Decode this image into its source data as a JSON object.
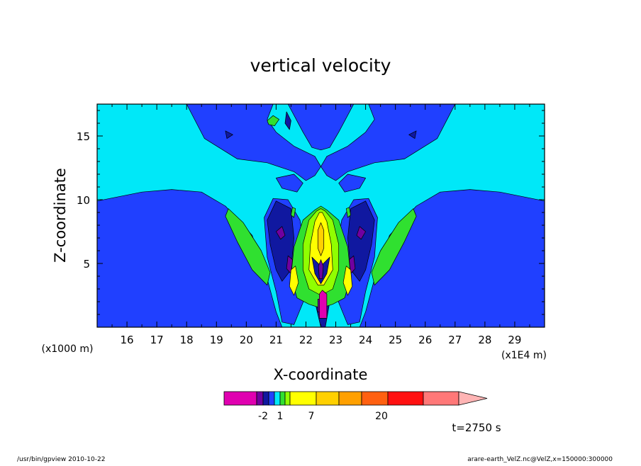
{
  "chart_data": {
    "type": "heatmap",
    "subtype": "filled-contour",
    "title": "vertical velocity",
    "xlabel": "X-coordinate",
    "ylabel": "Z-coordinate",
    "x_scale_label": "(x1E4 m)",
    "y_scale_label": "(x1000 m)",
    "x_range": [
      15.0,
      30.0
    ],
    "y_range": [
      0.0,
      17.5
    ],
    "x_ticks": [
      16,
      17,
      18,
      19,
      20,
      21,
      22,
      23,
      24,
      25,
      26,
      27,
      28,
      29
    ],
    "y_ticks": [
      5,
      10,
      15
    ],
    "colorbar": {
      "levels_shown": [
        "-2",
        "1",
        "7",
        "20"
      ],
      "colors": [
        "#e000b0",
        "#7000a0",
        "#1018a0",
        "#2040ff",
        "#00e8f8",
        "#30e030",
        "#90ff00",
        "#ffff00",
        "#ffd000",
        "#ffa000",
        "#ff6010",
        "#ff1010",
        "#ff7878",
        "#ffb4b4"
      ],
      "extend": "max"
    },
    "regions": [
      {
        "color": "#2040ff",
        "points": [
          [
            15.0,
            0.0
          ],
          [
            15.0,
            9.9
          ],
          [
            16.5,
            10.6
          ],
          [
            17.5,
            10.8
          ],
          [
            18.5,
            10.6
          ],
          [
            19.3,
            9.5
          ],
          [
            20.2,
            7.2
          ],
          [
            20.7,
            3.8
          ],
          [
            21.0,
            1.2
          ],
          [
            21.2,
            0.0
          ]
        ]
      },
      {
        "color": "#2040ff",
        "points": [
          [
            30.0,
            0.0
          ],
          [
            30.0,
            9.9
          ],
          [
            28.5,
            10.6
          ],
          [
            27.5,
            10.8
          ],
          [
            26.5,
            10.6
          ],
          [
            25.7,
            9.5
          ],
          [
            24.8,
            7.2
          ],
          [
            24.3,
            3.8
          ],
          [
            24.0,
            1.2
          ],
          [
            23.8,
            0.0
          ]
        ]
      },
      {
        "color": "#2040ff",
        "points": [
          [
            18.0,
            17.5
          ],
          [
            18.6,
            14.8
          ],
          [
            19.7,
            13.2
          ],
          [
            20.7,
            12.9
          ],
          [
            21.6,
            12.2
          ],
          [
            22.0,
            11.5
          ],
          [
            22.3,
            11.9
          ],
          [
            22.5,
            12.6
          ],
          [
            22.3,
            13.4
          ],
          [
            21.6,
            14.2
          ],
          [
            21.0,
            15.3
          ],
          [
            20.7,
            16.3
          ],
          [
            20.9,
            17.5
          ]
        ]
      },
      {
        "color": "#2040ff",
        "points": [
          [
            27.0,
            17.5
          ],
          [
            26.4,
            14.8
          ],
          [
            25.3,
            13.2
          ],
          [
            24.3,
            12.9
          ],
          [
            23.4,
            12.2
          ],
          [
            23.0,
            11.5
          ],
          [
            22.7,
            11.9
          ],
          [
            22.5,
            12.6
          ],
          [
            22.7,
            13.4
          ],
          [
            23.4,
            14.2
          ],
          [
            24.0,
            15.3
          ],
          [
            24.3,
            16.3
          ],
          [
            24.1,
            17.5
          ]
        ]
      },
      {
        "color": "#2040ff",
        "points": [
          [
            21.4,
            17.5
          ],
          [
            21.9,
            15.3
          ],
          [
            22.2,
            14.1
          ],
          [
            22.5,
            13.9
          ],
          [
            22.8,
            14.1
          ],
          [
            23.1,
            15.3
          ],
          [
            23.6,
            17.5
          ]
        ]
      },
      {
        "color": "#2040ff",
        "points": [
          [
            21.0,
            11.7
          ],
          [
            21.6,
            12.0
          ],
          [
            21.9,
            11.3
          ],
          [
            21.7,
            10.6
          ],
          [
            21.2,
            10.9
          ]
        ]
      },
      {
        "color": "#2040ff",
        "points": [
          [
            24.0,
            11.7
          ],
          [
            23.4,
            12.0
          ],
          [
            23.1,
            11.3
          ],
          [
            23.3,
            10.6
          ],
          [
            23.8,
            10.9
          ]
        ]
      },
      {
        "color": "#2040ff",
        "points": [
          [
            20.6,
            8.6
          ],
          [
            20.9,
            10.1
          ],
          [
            21.4,
            10.0
          ],
          [
            21.8,
            8.4
          ],
          [
            22.0,
            5.5
          ],
          [
            22.0,
            2.5
          ],
          [
            21.6,
            0.2
          ],
          [
            21.2,
            0.4
          ],
          [
            21.0,
            2.8
          ],
          [
            20.7,
            5.5
          ]
        ]
      },
      {
        "color": "#2040ff",
        "points": [
          [
            24.4,
            8.6
          ],
          [
            24.1,
            10.1
          ],
          [
            23.6,
            10.0
          ],
          [
            23.2,
            8.4
          ],
          [
            23.0,
            5.5
          ],
          [
            23.0,
            2.5
          ],
          [
            23.4,
            0.2
          ],
          [
            23.8,
            0.4
          ],
          [
            24.0,
            2.8
          ],
          [
            24.3,
            5.5
          ]
        ]
      },
      {
        "color": "#1018a0",
        "points": [
          [
            20.7,
            8.4
          ],
          [
            21.0,
            9.9
          ],
          [
            21.5,
            9.3
          ],
          [
            21.6,
            7.0
          ],
          [
            21.5,
            4.5
          ],
          [
            21.2,
            3.6
          ],
          [
            21.0,
            4.5
          ],
          [
            20.8,
            6.5
          ]
        ]
      },
      {
        "color": "#1018a0",
        "points": [
          [
            24.3,
            8.4
          ],
          [
            24.0,
            9.9
          ],
          [
            23.5,
            9.3
          ],
          [
            23.4,
            7.0
          ],
          [
            23.5,
            4.5
          ],
          [
            23.8,
            3.6
          ],
          [
            24.0,
            4.5
          ],
          [
            24.2,
            6.5
          ]
        ]
      },
      {
        "color": "#1018a0",
        "points": [
          [
            22.5,
            0.0
          ],
          [
            22.3,
            2.0
          ],
          [
            22.35,
            4.6
          ],
          [
            22.55,
            5.2
          ],
          [
            22.75,
            4.6
          ],
          [
            22.8,
            2.0
          ],
          [
            22.65,
            0.0
          ]
        ]
      },
      {
        "color": "#1018a0",
        "points": [
          [
            21.3,
            16.0
          ],
          [
            21.35,
            16.9
          ],
          [
            21.5,
            16.2
          ],
          [
            21.45,
            15.5
          ]
        ]
      },
      {
        "color": "#1018a0",
        "points": [
          [
            19.3,
            15.4
          ],
          [
            19.55,
            15.1
          ],
          [
            19.35,
            14.8
          ]
        ]
      },
      {
        "color": "#1018a0",
        "points": [
          [
            25.7,
            15.4
          ],
          [
            25.45,
            15.1
          ],
          [
            25.65,
            14.8
          ]
        ]
      },
      {
        "color": "#7000a0",
        "points": [
          [
            21.0,
            7.5
          ],
          [
            21.2,
            7.9
          ],
          [
            21.3,
            7.2
          ],
          [
            21.15,
            6.9
          ]
        ]
      },
      {
        "color": "#7000a0",
        "points": [
          [
            24.0,
            7.5
          ],
          [
            23.8,
            7.9
          ],
          [
            23.7,
            7.2
          ],
          [
            23.85,
            6.9
          ]
        ]
      },
      {
        "color": "#7000a0",
        "points": [
          [
            21.4,
            5.6
          ],
          [
            21.55,
            5.3
          ],
          [
            21.5,
            4.2
          ],
          [
            21.35,
            4.6
          ]
        ]
      },
      {
        "color": "#7000a0",
        "points": [
          [
            23.6,
            5.6
          ],
          [
            23.45,
            5.3
          ],
          [
            23.5,
            4.2
          ],
          [
            23.65,
            4.6
          ]
        ]
      },
      {
        "color": "#30e030",
        "points": [
          [
            19.4,
            9.3
          ],
          [
            19.9,
            8.2
          ],
          [
            20.5,
            6.0
          ],
          [
            20.8,
            4.3
          ],
          [
            20.7,
            3.3
          ],
          [
            20.2,
            4.5
          ],
          [
            19.7,
            6.7
          ],
          [
            19.3,
            8.7
          ]
        ]
      },
      {
        "color": "#30e030",
        "points": [
          [
            25.6,
            9.3
          ],
          [
            25.1,
            8.2
          ],
          [
            24.5,
            6.0
          ],
          [
            24.2,
            4.3
          ],
          [
            24.3,
            3.3
          ],
          [
            24.8,
            4.5
          ],
          [
            25.3,
            6.7
          ],
          [
            25.7,
            8.7
          ]
        ]
      },
      {
        "color": "#30e030",
        "points": [
          [
            21.9,
            8.4
          ],
          [
            22.3,
            9.2
          ],
          [
            22.5,
            9.5
          ],
          [
            22.7,
            9.2
          ],
          [
            23.1,
            8.4
          ],
          [
            23.4,
            6.3
          ],
          [
            23.5,
            4.0
          ],
          [
            23.3,
            2.3
          ],
          [
            22.9,
            1.8
          ],
          [
            22.5,
            1.5
          ],
          [
            22.1,
            1.8
          ],
          [
            21.7,
            2.3
          ],
          [
            21.5,
            4.0
          ],
          [
            21.6,
            6.3
          ]
        ]
      },
      {
        "color": "#30e030",
        "points": [
          [
            20.7,
            16.2
          ],
          [
            20.9,
            16.6
          ],
          [
            21.1,
            16.3
          ],
          [
            20.95,
            15.8
          ],
          [
            20.75,
            15.9
          ]
        ]
      },
      {
        "color": "#30e030",
        "points": [
          [
            21.55,
            9.4
          ],
          [
            21.65,
            9.3
          ],
          [
            21.6,
            8.6
          ],
          [
            21.5,
            8.8
          ]
        ]
      },
      {
        "color": "#30e030",
        "points": [
          [
            23.45,
            9.4
          ],
          [
            23.35,
            9.3
          ],
          [
            23.4,
            8.6
          ],
          [
            23.5,
            8.8
          ]
        ]
      },
      {
        "color": "#90ff00",
        "points": [
          [
            22.1,
            8.4
          ],
          [
            22.35,
            9.1
          ],
          [
            22.5,
            9.3
          ],
          [
            22.65,
            9.1
          ],
          [
            22.9,
            8.4
          ],
          [
            23.1,
            6.5
          ],
          [
            23.1,
            4.5
          ],
          [
            22.9,
            3.0
          ],
          [
            22.5,
            2.5
          ],
          [
            22.1,
            3.0
          ],
          [
            21.9,
            4.5
          ],
          [
            21.9,
            6.5
          ]
        ]
      },
      {
        "color": "#ffff00",
        "points": [
          [
            22.3,
            8.3
          ],
          [
            22.45,
            9.0
          ],
          [
            22.55,
            9.0
          ],
          [
            22.7,
            8.3
          ],
          [
            22.85,
            6.5
          ],
          [
            22.9,
            4.5
          ],
          [
            22.6,
            3.3
          ],
          [
            22.4,
            3.3
          ],
          [
            22.1,
            4.5
          ],
          [
            22.15,
            6.5
          ]
        ]
      },
      {
        "color": "#ffff00",
        "points": [
          [
            21.5,
            4.5
          ],
          [
            21.65,
            4.8
          ],
          [
            21.75,
            3.5
          ],
          [
            21.6,
            2.5
          ],
          [
            21.45,
            3.2
          ]
        ]
      },
      {
        "color": "#ffff00",
        "points": [
          [
            23.5,
            4.5
          ],
          [
            23.35,
            4.8
          ],
          [
            23.25,
            3.5
          ],
          [
            23.4,
            2.5
          ],
          [
            23.55,
            3.2
          ]
        ]
      },
      {
        "color": "#ffd000",
        "points": [
          [
            22.4,
            7.6
          ],
          [
            22.5,
            8.2
          ],
          [
            22.6,
            7.6
          ],
          [
            22.6,
            6.2
          ],
          [
            22.5,
            5.6
          ],
          [
            22.4,
            6.2
          ]
        ]
      },
      {
        "color": "#1018a0",
        "points": [
          [
            22.2,
            5.5
          ],
          [
            22.3,
            4.2
          ],
          [
            22.5,
            3.4
          ],
          [
            22.7,
            4.2
          ],
          [
            22.8,
            5.5
          ],
          [
            22.5,
            4.8
          ]
        ]
      },
      {
        "color": "#7000a0",
        "points": [
          [
            22.42,
            4.8
          ],
          [
            22.5,
            5.3
          ],
          [
            22.58,
            4.8
          ],
          [
            22.55,
            3.8
          ],
          [
            22.45,
            3.8
          ]
        ]
      },
      {
        "color": "#7000a0",
        "points": [
          [
            22.4,
            1.2
          ],
          [
            22.4,
            2.2
          ],
          [
            22.6,
            2.2
          ],
          [
            22.6,
            1.2
          ]
        ]
      },
      {
        "color": "#e000b0",
        "points": [
          [
            22.45,
            0.7
          ],
          [
            22.45,
            2.6
          ],
          [
            22.55,
            2.9
          ],
          [
            22.7,
            2.6
          ],
          [
            22.7,
            0.7
          ]
        ]
      }
    ]
  },
  "time_label": "t=2750 s",
  "footer": {
    "left": "/usr/bin/gpview   2010-10-22",
    "right": "arare-earth_VelZ.nc@VelZ,x=150000:300000"
  }
}
